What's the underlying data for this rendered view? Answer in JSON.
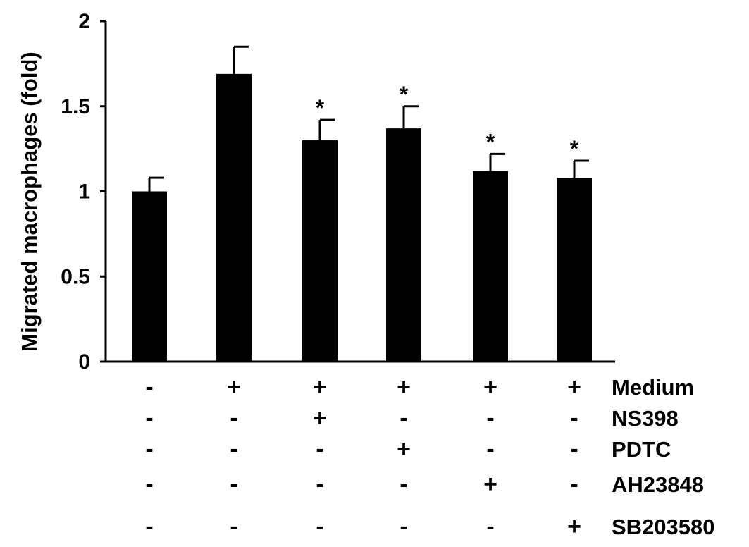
{
  "chart_data": {
    "type": "bar",
    "title": "",
    "xlabel": "",
    "ylabel": "Migrated macrophages (fold)",
    "ylim": [
      0,
      2
    ],
    "yticks": [
      "0",
      "0.5",
      "1",
      "1.5",
      "2"
    ],
    "grid": false,
    "bar_color": "#000000",
    "series": [
      {
        "values": [
          1.0,
          1.69,
          1.3,
          1.37,
          1.12,
          1.08
        ],
        "errors": [
          0.08,
          0.16,
          0.12,
          0.13,
          0.1,
          0.1
        ],
        "significance": [
          "",
          "",
          "*",
          "*",
          "*",
          "*"
        ]
      }
    ],
    "treatments": [
      {
        "label": "Medium",
        "signs": [
          "-",
          "+",
          "+",
          "+",
          "+",
          "+"
        ]
      },
      {
        "label": "NS398",
        "signs": [
          "-",
          "-",
          "+",
          "-",
          "-",
          "-"
        ]
      },
      {
        "label": "PDTC",
        "signs": [
          "-",
          "-",
          "-",
          "+",
          "-",
          "-"
        ]
      },
      {
        "label": "AH23848",
        "signs": [
          "-",
          "-",
          "-",
          "-",
          "+",
          "-"
        ]
      },
      {
        "label": "SB203580",
        "signs": [
          "-",
          "-",
          "-",
          "-",
          "-",
          "+"
        ]
      }
    ]
  }
}
